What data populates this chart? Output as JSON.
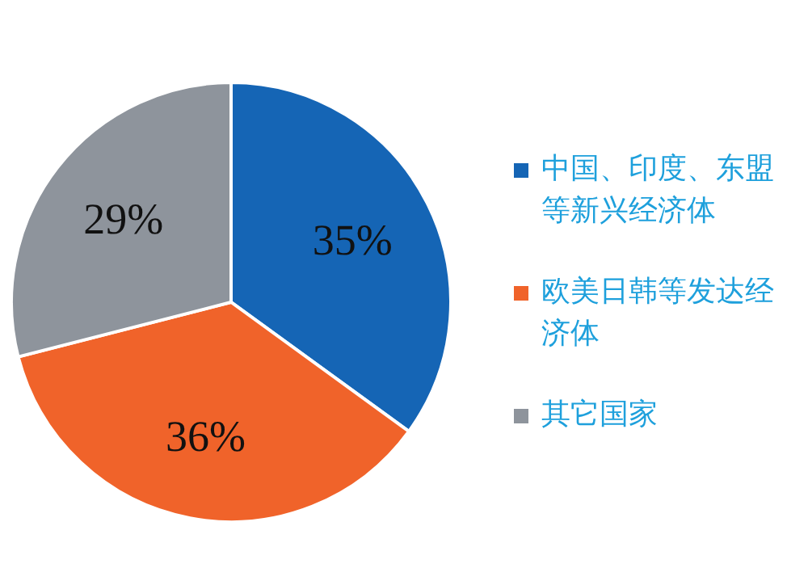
{
  "chart_data": {
    "type": "pie",
    "categories": [
      "中国、印度、东盟等新兴经济体",
      "欧美日韩等发达经济体",
      "其它国家"
    ],
    "values": [
      35,
      36,
      29
    ],
    "colors": [
      "#1565b5",
      "#f0632a",
      "#8e949c"
    ],
    "value_labels": [
      "35%",
      "36%",
      "29%"
    ],
    "legend": "right"
  }
}
